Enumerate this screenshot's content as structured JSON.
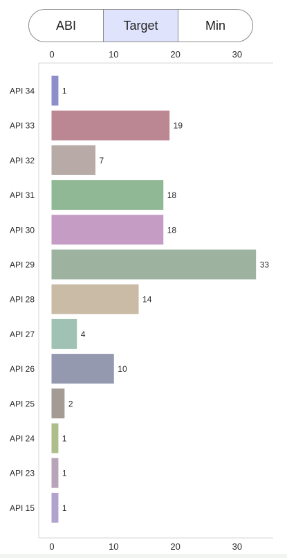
{
  "segmented_control": {
    "options": [
      "ABI",
      "Target",
      "Min"
    ],
    "selected_index": 1,
    "selected_color": "#dfe3fb"
  },
  "chart_data": {
    "type": "bar",
    "orientation": "horizontal",
    "title": "",
    "xlabel": "",
    "ylabel": "",
    "xlim": [
      0,
      35
    ],
    "xticks": [
      0,
      10,
      20,
      30
    ],
    "xticks_position": "top-and-bottom",
    "grid": false,
    "categories": [
      "API 34",
      "API 33",
      "API 32",
      "API 31",
      "API 30",
      "API 29",
      "API 28",
      "API 27",
      "API 26",
      "API 25",
      "API 24",
      "API 23",
      "API 15"
    ],
    "values": [
      1,
      19,
      7,
      18,
      18,
      33,
      14,
      4,
      10,
      2,
      1,
      1,
      1
    ],
    "colors": [
      "#8d8fcb",
      "#bb8793",
      "#b8aba7",
      "#91b894",
      "#c49cc4",
      "#9db3a0",
      "#c9bba5",
      "#9fc2b4",
      "#9499b0",
      "#a49b95",
      "#adbe8c",
      "#b8a4b8",
      "#b1a3ce"
    ],
    "data_labels": true
  }
}
